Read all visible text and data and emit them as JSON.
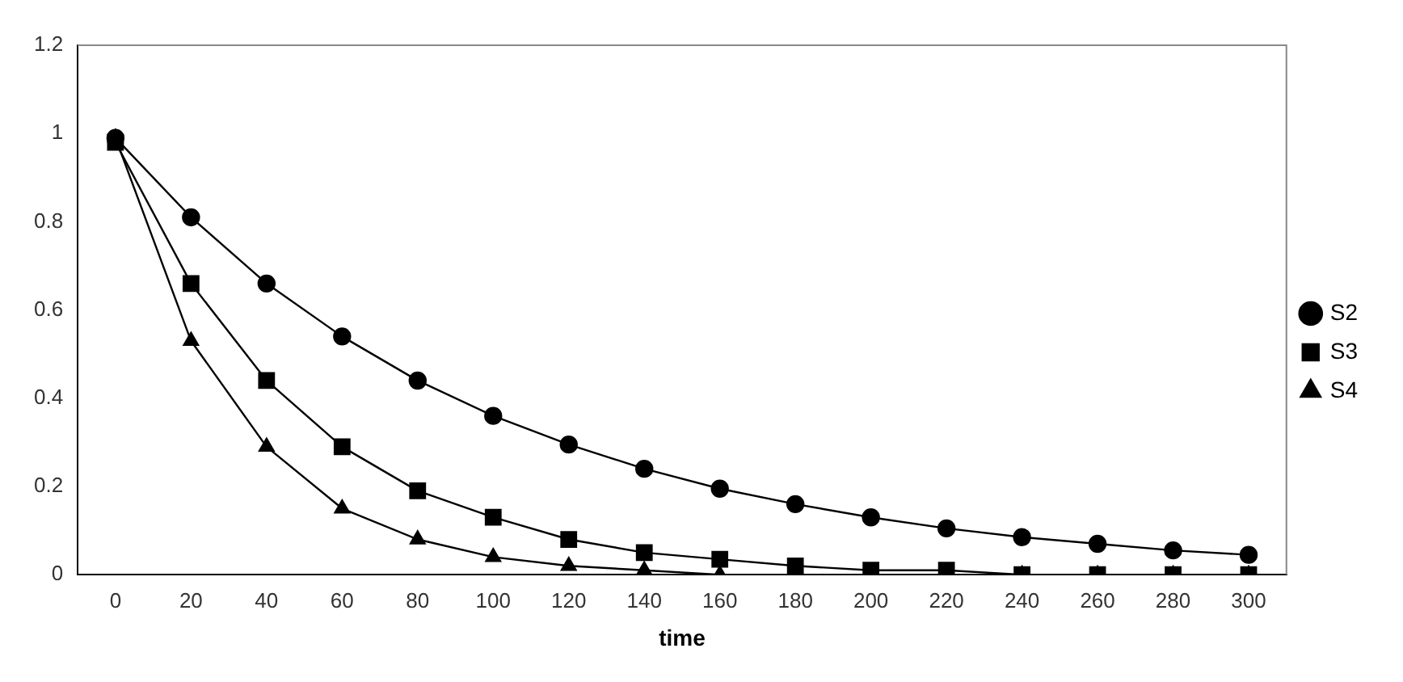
{
  "chart_data": {
    "type": "line",
    "xlabel": "time",
    "categories": [
      "0",
      "20",
      "40",
      "60",
      "80",
      "100",
      "120",
      "140",
      "160",
      "180",
      "200",
      "220",
      "240",
      "260",
      "280",
      "300"
    ],
    "series": [
      {
        "name": "S2",
        "color": "#000000",
        "marker": "circle",
        "values": [
          0.99,
          0.81,
          0.66,
          0.54,
          0.44,
          0.36,
          0.295,
          0.24,
          0.195,
          0.16,
          0.13,
          0.105,
          0.085,
          0.07,
          0.055,
          0.045
        ]
      },
      {
        "name": "S3",
        "color": "#000000",
        "marker": "square",
        "values": [
          0.98,
          0.66,
          0.44,
          0.29,
          0.19,
          0.13,
          0.08,
          0.05,
          0.035,
          0.02,
          0.01,
          0.01,
          0,
          0,
          0,
          0
        ]
      },
      {
        "name": "S4",
        "color": "#000000",
        "marker": "triangle",
        "values": [
          0.99,
          0.53,
          0.29,
          0.15,
          0.08,
          0.04,
          0.02,
          0.01,
          0,
          0,
          0,
          0,
          0,
          0,
          0,
          0
        ]
      }
    ],
    "ylim": [
      0,
      1.2
    ],
    "yticks": [
      0,
      0.2,
      0.4,
      0.6,
      0.8,
      1,
      1.2
    ],
    "grid": false,
    "legend": "right"
  }
}
